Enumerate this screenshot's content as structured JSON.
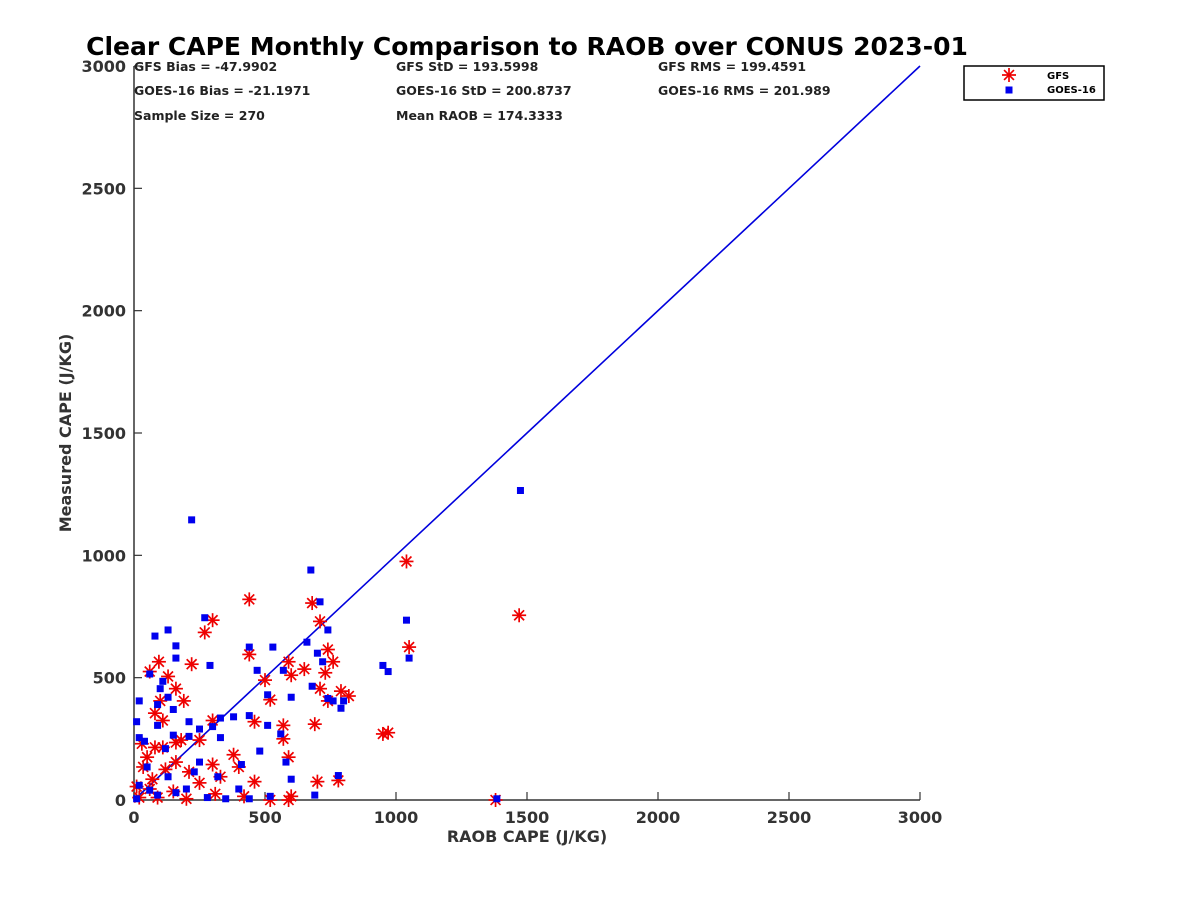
{
  "chart_data": {
    "type": "scatter",
    "title": "Clear CAPE Monthly Comparison to RAOB over CONUS 2023-01",
    "xlabel": "RAOB CAPE (J/KG)",
    "ylabel": "Measured CAPE (J/KG)",
    "xlim": [
      0,
      3000
    ],
    "ylim": [
      0,
      3000
    ],
    "xticks": [
      "0",
      "500",
      "1000",
      "1500",
      "2000",
      "2500",
      "3000"
    ],
    "yticks": [
      "0",
      "500",
      "1000",
      "1500",
      "2000",
      "2500",
      "3000"
    ],
    "grid": false,
    "legend_position": "top-right",
    "reference_line": {
      "x": [
        0,
        3000
      ],
      "y": [
        0,
        3000
      ],
      "color": "#0000dd"
    },
    "stats": {
      "gfs_bias": "GFS Bias = -47.9902",
      "gfs_std": "GFS StD = 193.5998",
      "gfs_rms": "GFS RMS = 199.4591",
      "goes_bias": "GOES-16 Bias = -21.1971",
      "goes_std": "GOES-16 StD = 200.8737",
      "goes_rms": "GOES-16 RMS = 201.989",
      "sample_size": "Sample Size = 270",
      "mean_raob": "Mean RAOB = 174.3333"
    },
    "series": [
      {
        "name": "GFS",
        "marker": "asterisk",
        "color": "#ee0000",
        "points": [
          [
            1040,
            975
          ],
          [
            1470,
            755
          ],
          [
            1050,
            625
          ],
          [
            440,
            820
          ],
          [
            300,
            735
          ],
          [
            270,
            685
          ],
          [
            680,
            805
          ],
          [
            710,
            730
          ],
          [
            440,
            595
          ],
          [
            220,
            555
          ],
          [
            95,
            565
          ],
          [
            60,
            525
          ],
          [
            740,
            615
          ],
          [
            130,
            505
          ],
          [
            590,
            565
          ],
          [
            650,
            535
          ],
          [
            500,
            490
          ],
          [
            600,
            510
          ],
          [
            730,
            520
          ],
          [
            760,
            565
          ],
          [
            160,
            455
          ],
          [
            710,
            455
          ],
          [
            790,
            445
          ],
          [
            820,
            425
          ],
          [
            520,
            410
          ],
          [
            740,
            405
          ],
          [
            100,
            405
          ],
          [
            190,
            405
          ],
          [
            80,
            355
          ],
          [
            300,
            325
          ],
          [
            110,
            325
          ],
          [
            460,
            320
          ],
          [
            570,
            305
          ],
          [
            690,
            310
          ],
          [
            950,
            270
          ],
          [
            970,
            275
          ],
          [
            570,
            250
          ],
          [
            250,
            245
          ],
          [
            180,
            245
          ],
          [
            380,
            185
          ],
          [
            160,
            235
          ],
          [
            30,
            230
          ],
          [
            110,
            215
          ],
          [
            50,
            175
          ],
          [
            590,
            175
          ],
          [
            160,
            155
          ],
          [
            210,
            115
          ],
          [
            400,
            135
          ],
          [
            300,
            145
          ],
          [
            120,
            125
          ],
          [
            70,
            85
          ],
          [
            460,
            75
          ],
          [
            700,
            75
          ],
          [
            780,
            80
          ],
          [
            330,
            95
          ],
          [
            250,
            70
          ],
          [
            10,
            55
          ],
          [
            60,
            45
          ],
          [
            150,
            35
          ],
          [
            310,
            25
          ],
          [
            420,
            15
          ],
          [
            600,
            15
          ],
          [
            520,
            0
          ],
          [
            590,
            0
          ],
          [
            1380,
            0
          ],
          [
            20,
            10
          ],
          [
            90,
            10
          ],
          [
            200,
            5
          ],
          [
            35,
            135
          ],
          [
            80,
            215
          ]
        ]
      },
      {
        "name": "GOES-16",
        "marker": "square",
        "color": "#0000ee",
        "points": [
          [
            1475,
            1265
          ],
          [
            220,
            1145
          ],
          [
            675,
            940
          ],
          [
            710,
            810
          ],
          [
            270,
            745
          ],
          [
            740,
            695
          ],
          [
            130,
            695
          ],
          [
            80,
            670
          ],
          [
            160,
            630
          ],
          [
            440,
            625
          ],
          [
            530,
            625
          ],
          [
            660,
            645
          ],
          [
            1040,
            735
          ],
          [
            700,
            600
          ],
          [
            1050,
            580
          ],
          [
            160,
            580
          ],
          [
            720,
            565
          ],
          [
            950,
            550
          ],
          [
            970,
            525
          ],
          [
            570,
            530
          ],
          [
            470,
            530
          ],
          [
            60,
            515
          ],
          [
            110,
            485
          ],
          [
            290,
            550
          ],
          [
            100,
            455
          ],
          [
            680,
            465
          ],
          [
            510,
            430
          ],
          [
            600,
            420
          ],
          [
            130,
            420
          ],
          [
            740,
            415
          ],
          [
            760,
            405
          ],
          [
            800,
            405
          ],
          [
            20,
            405
          ],
          [
            90,
            390
          ],
          [
            150,
            370
          ],
          [
            790,
            375
          ],
          [
            440,
            345
          ],
          [
            10,
            320
          ],
          [
            330,
            335
          ],
          [
            380,
            340
          ],
          [
            210,
            320
          ],
          [
            300,
            300
          ],
          [
            510,
            305
          ],
          [
            90,
            305
          ],
          [
            250,
            290
          ],
          [
            210,
            260
          ],
          [
            150,
            265
          ],
          [
            40,
            240
          ],
          [
            330,
            255
          ],
          [
            560,
            270
          ],
          [
            480,
            200
          ],
          [
            410,
            145
          ],
          [
            580,
            155
          ],
          [
            250,
            155
          ],
          [
            230,
            115
          ],
          [
            600,
            85
          ],
          [
            780,
            100
          ],
          [
            320,
            95
          ],
          [
            130,
            95
          ],
          [
            20,
            60
          ],
          [
            60,
            40
          ],
          [
            400,
            45
          ],
          [
            690,
            20
          ],
          [
            520,
            15
          ],
          [
            440,
            5
          ],
          [
            1385,
            5
          ],
          [
            10,
            5
          ],
          [
            90,
            20
          ],
          [
            160,
            30
          ],
          [
            280,
            10
          ],
          [
            350,
            5
          ],
          [
            50,
            135
          ],
          [
            120,
            210
          ],
          [
            20,
            255
          ],
          [
            200,
            45
          ]
        ]
      }
    ]
  }
}
